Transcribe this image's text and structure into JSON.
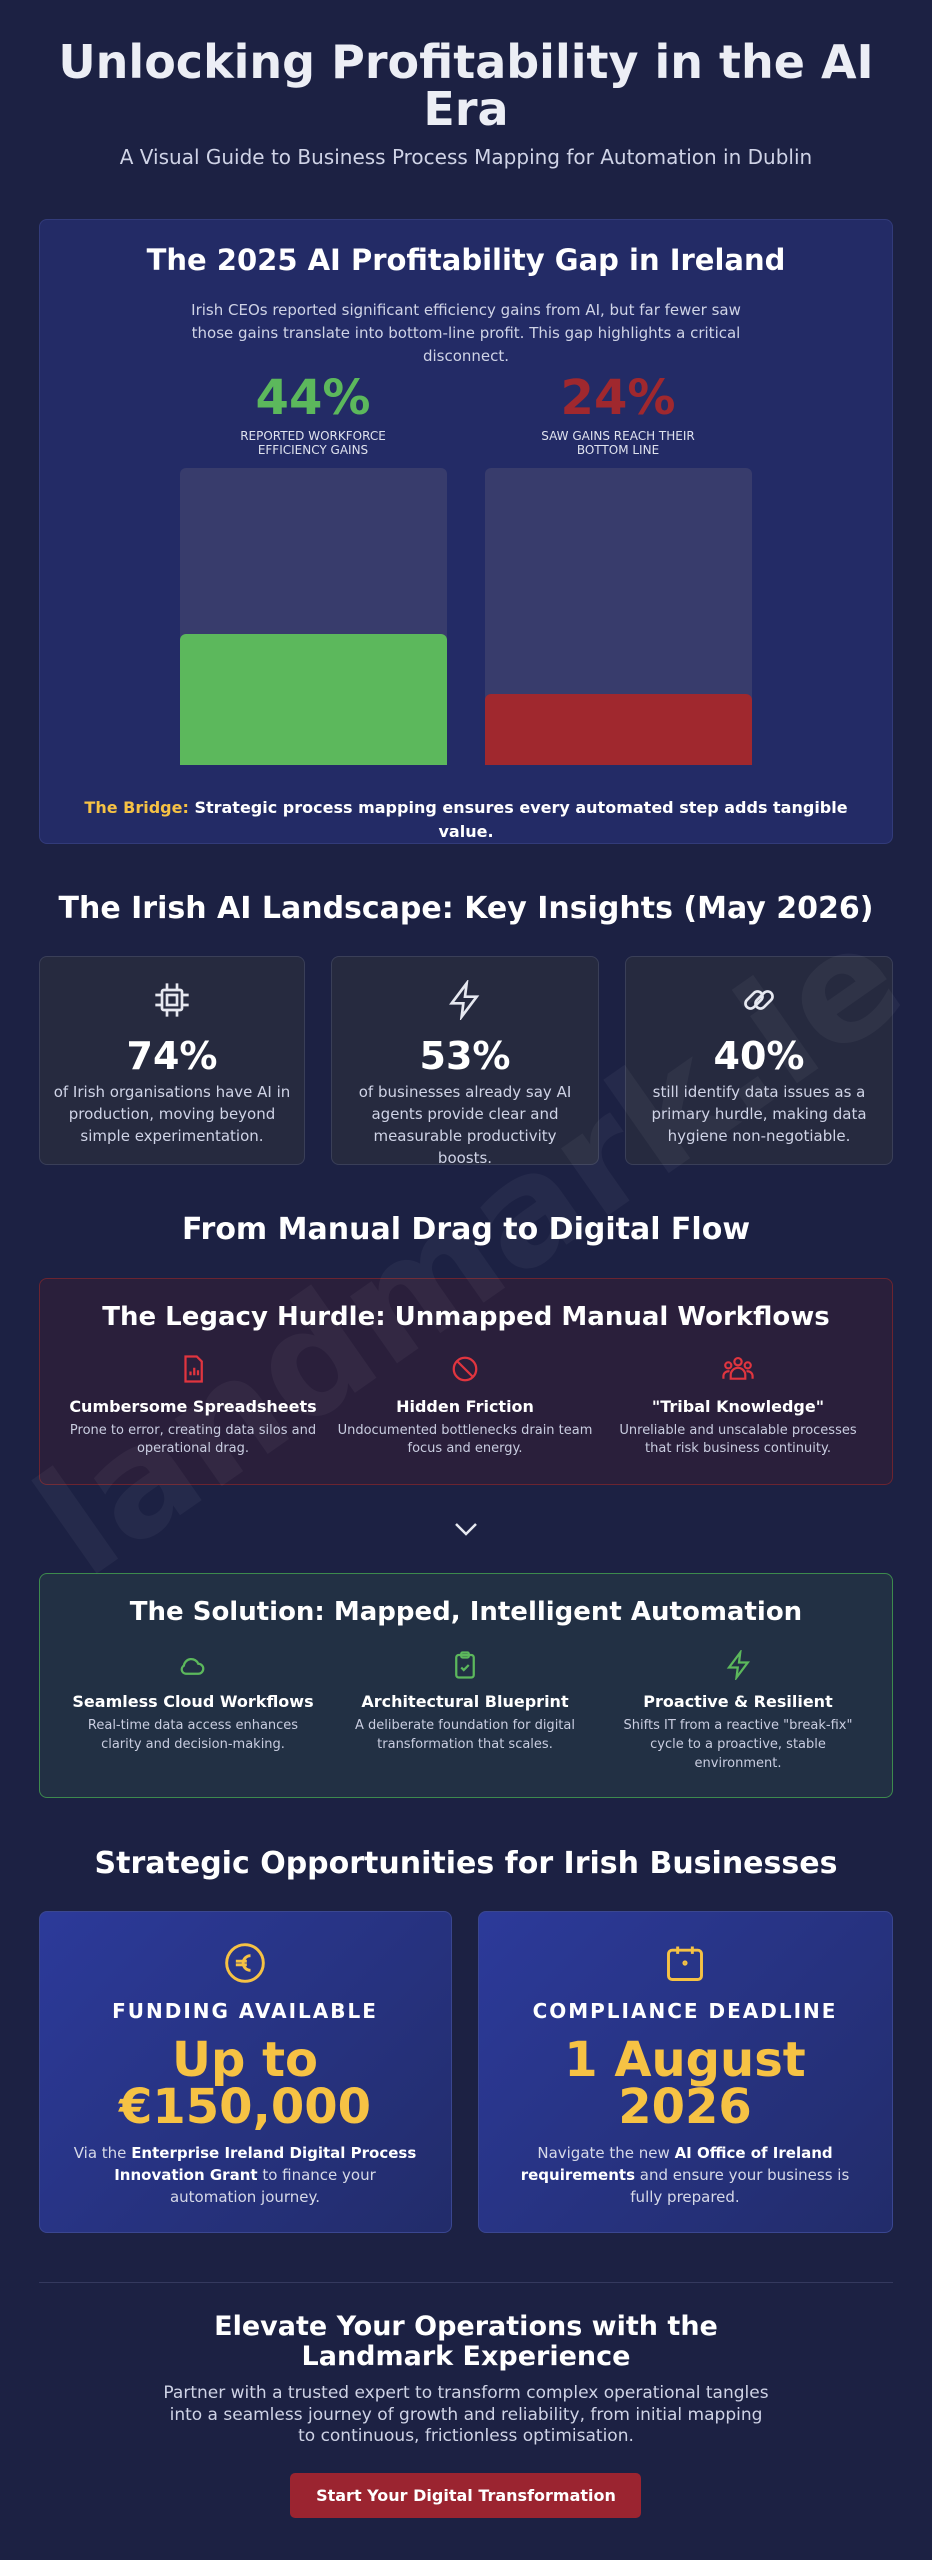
{
  "header": {
    "title": "Unlocking Profitability in the AI Era",
    "subtitle": "A Visual Guide to Business Process Mapping for Automation in Dublin"
  },
  "gap": {
    "title": "The 2025 AI Profitability Gap in Ireland",
    "description": "Irish CEOs reported significant efficiency gains from AI, but far fewer saw those gains translate into bottom-line profit. This gap highlights a critical disconnect.",
    "ylim": [
      0,
      100
    ],
    "stats": [
      {
        "value": 44,
        "value_label": "44%",
        "label": "REPORTED WORKFORCE EFFICIENCY GAINS",
        "color": "#5cb85c"
      },
      {
        "value": 24,
        "value_label": "24%",
        "label": "SAW GAINS REACH THEIR BOTTOM LINE",
        "color": "#a0282e"
      }
    ],
    "bridge": {
      "lead": "The Bridge:",
      "text": "Strategic process mapping ensures every automated step adds tangible value."
    }
  },
  "insights": {
    "title": "The Irish AI Landscape: Key Insights (May 2026)",
    "cards": [
      {
        "value": "74%",
        "text": "of Irish organisations have AI in production, moving beyond simple experimentation."
      },
      {
        "value": "53%",
        "text": "of businesses already say AI agents provide clear and measurable productivity boosts."
      },
      {
        "value": "40%",
        "text": "still identify data issues as a primary hurdle, making data hygiene non-negotiable."
      }
    ]
  },
  "flow": {
    "title": "From Manual Drag to Digital Flow",
    "legacy": {
      "title": "The Legacy Hurdle: Unmapped Manual Workflows",
      "items": [
        {
          "title": "Cumbersome Spreadsheets",
          "text": "Prone to error, creating data silos and operational drag."
        },
        {
          "title": "Hidden Friction",
          "text": "Undocumented bottlenecks drain team focus and energy."
        },
        {
          "title": "\"Tribal Knowledge\"",
          "text": "Unreliable and unscalable processes that risk business continuity."
        }
      ]
    },
    "solution": {
      "title": "The Solution: Mapped, Intelligent Automation",
      "items": [
        {
          "title": "Seamless Cloud Workflows",
          "text": "Real-time data access enhances clarity and decision-making."
        },
        {
          "title": "Architectural Blueprint",
          "text": "A deliberate foundation for digital transformation that scales."
        },
        {
          "title": "Proactive & Resilient",
          "text": "Shifts IT from a reactive \"break-fix\" cycle to a proactive, stable environment."
        }
      ]
    }
  },
  "opportunities": {
    "title": "Strategic Opportunities for Irish Businesses",
    "cards": [
      {
        "label": "FUNDING AVAILABLE",
        "headline": "Up to €150,000",
        "description": [
          {
            "text": "Via the "
          },
          {
            "text": "Enterprise Ireland Digital Process Innovation Grant",
            "bold": true
          },
          {
            "text": " to finance your automation journey."
          }
        ]
      },
      {
        "label": "COMPLIANCE DEADLINE",
        "headline": "1 August 2026",
        "description": [
          {
            "text": "Navigate the new "
          },
          {
            "text": "AI Office of Ireland requirements",
            "bold": true
          },
          {
            "text": " and ensure your business is fully prepared."
          }
        ]
      }
    ]
  },
  "cta": {
    "title": "Elevate Your Operations with the Landmark Experience",
    "text": "Partner with a trusted expert to transform complex operational tangles into a seamless journey of growth and reliability, from initial mapping to continuous, frictionless optimisation.",
    "button": "Start Your Digital Transformation"
  },
  "watermark": "landmark.ie"
}
